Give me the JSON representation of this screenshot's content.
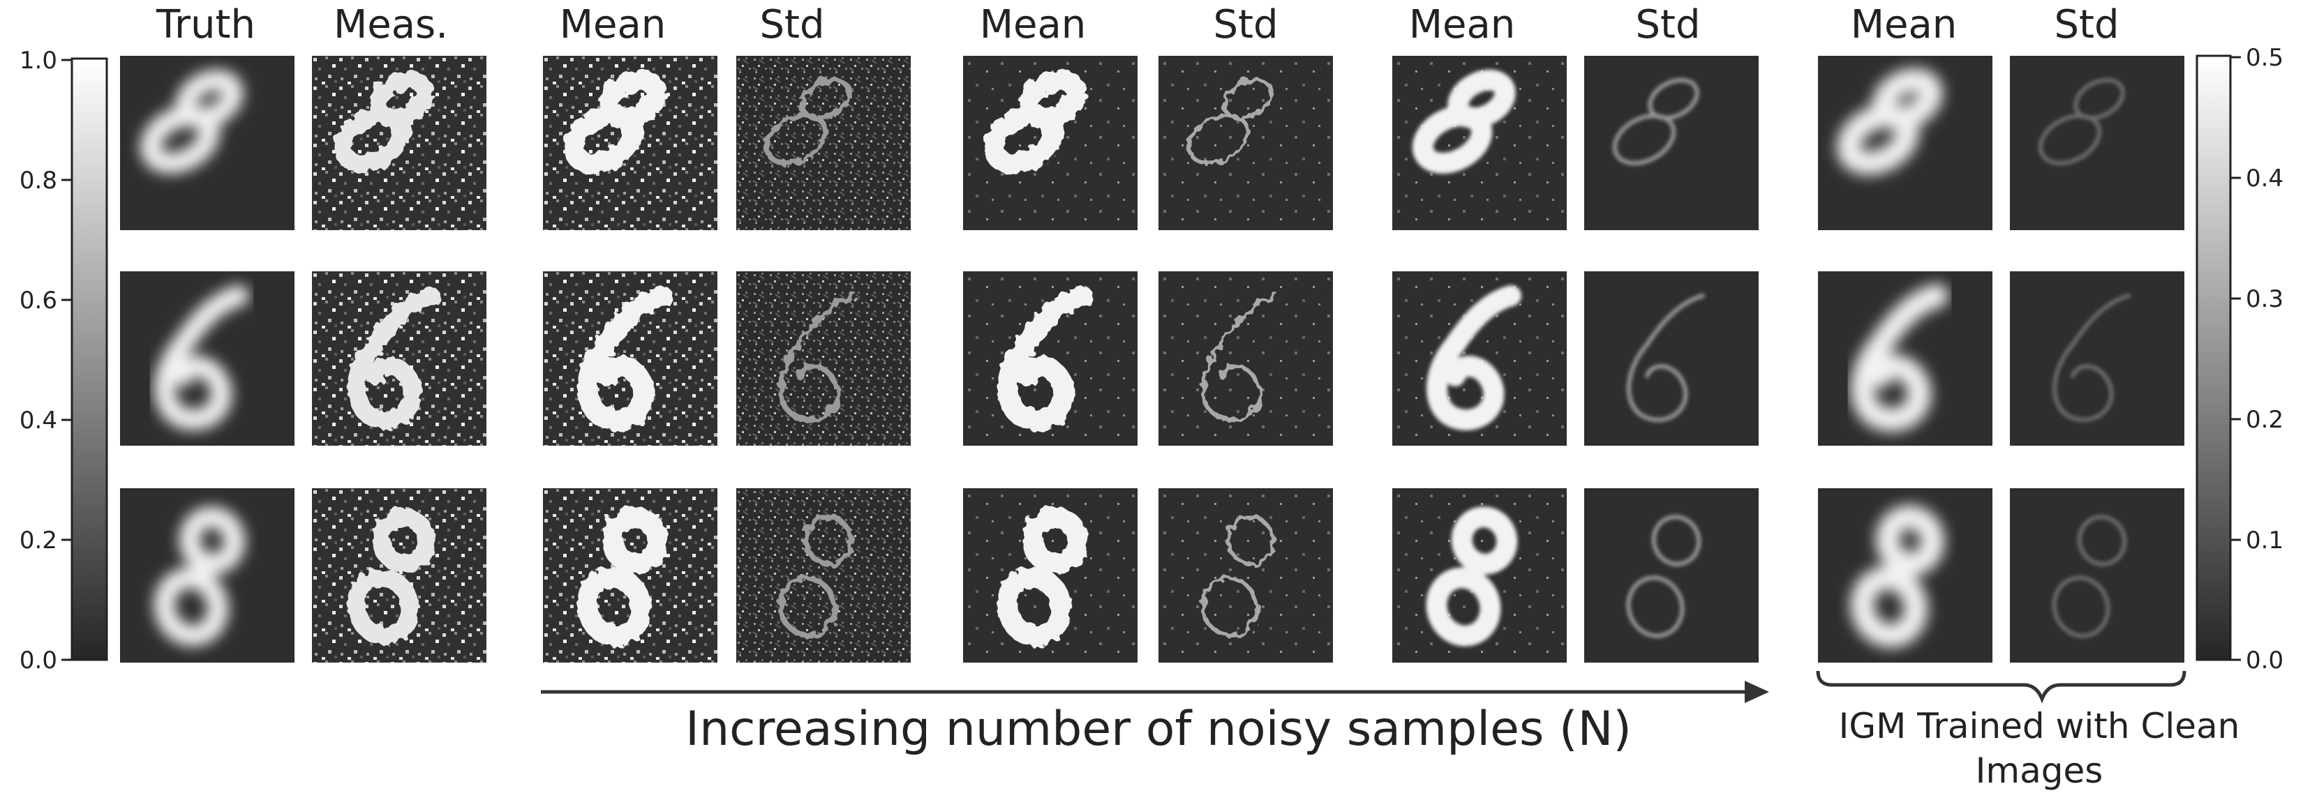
{
  "figure": {
    "column_headers": [
      "Truth",
      "Meas.",
      "Mean",
      "Std",
      "Mean",
      "Std",
      "Mean",
      "Std",
      "Mean",
      "Std"
    ],
    "left_colorbar": {
      "ticks": [
        "1.0",
        "0.8",
        "0.6",
        "0.4",
        "0.2",
        "0.0"
      ],
      "min": 0.0,
      "max": 1.0
    },
    "right_colorbar": {
      "ticks": [
        "0.5",
        "0.4",
        "0.3",
        "0.2",
        "0.1",
        "0.0"
      ],
      "min": 0.0,
      "max": 0.5
    },
    "arrow_caption": "Increasing number of noisy samples (N)",
    "brace_caption_line1": "IGM Trained with Clean",
    "brace_caption_line2": "Images",
    "rows": 3,
    "digit": "8",
    "colors": {
      "panel_background": "#2e2e2e",
      "stroke": "#f2f2f2",
      "text": "#222222"
    }
  }
}
